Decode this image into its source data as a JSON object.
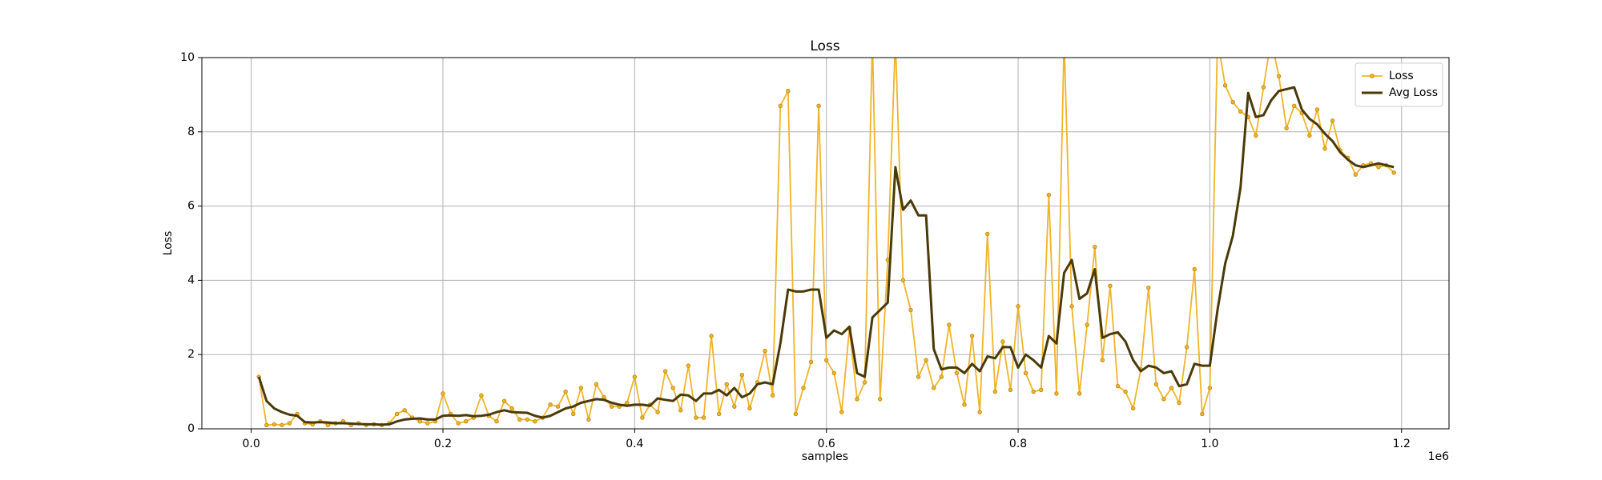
{
  "chart_data": {
    "type": "line",
    "title": "Loss",
    "x_label": "samples",
    "y_label": "Loss",
    "x_offset_label": "1e6",
    "x": [
      8000,
      16000,
      24000,
      32000,
      40000,
      48000,
      56000,
      64000,
      72000,
      80000,
      88000,
      96000,
      104000,
      112000,
      120000,
      128000,
      136000,
      144000,
      152000,
      160000,
      168000,
      176000,
      184000,
      192000,
      200000,
      208000,
      216000,
      224000,
      232000,
      240000,
      248000,
      256000,
      264000,
      272000,
      280000,
      288000,
      296000,
      304000,
      312000,
      320000,
      328000,
      336000,
      344000,
      352000,
      360000,
      368000,
      376000,
      384000,
      392000,
      400000,
      408000,
      416000,
      424000,
      432000,
      440000,
      448000,
      456000,
      464000,
      472000,
      480000,
      488000,
      496000,
      504000,
      512000,
      520000,
      528000,
      536000,
      544000,
      552000,
      560000,
      568000,
      576000,
      584000,
      592000,
      600000,
      608000,
      616000,
      624000,
      632000,
      640000,
      648000,
      656000,
      664000,
      672000,
      680000,
      688000,
      696000,
      704000,
      712000,
      720000,
      728000,
      736000,
      744000,
      752000,
      760000,
      768000,
      776000,
      784000,
      792000,
      800000,
      808000,
      816000,
      824000,
      832000,
      840000,
      848000,
      856000,
      864000,
      872000,
      880000,
      888000,
      896000,
      904000,
      912000,
      920000,
      928000,
      936000,
      944000,
      952000,
      960000,
      968000,
      976000,
      984000,
      992000,
      1000000,
      1008000,
      1016000,
      1024000,
      1032000,
      1040000,
      1048000,
      1056000,
      1064000,
      1072000,
      1080000,
      1088000,
      1096000,
      1104000,
      1112000,
      1120000,
      1128000,
      1136000,
      1144000,
      1152000,
      1160000,
      1168000,
      1176000,
      1184000,
      1192000
    ],
    "series": [
      {
        "name": "Loss",
        "color": "#f0b429",
        "marker": true,
        "values": [
          1.4,
          0.1,
          0.12,
          0.1,
          0.15,
          0.4,
          0.15,
          0.12,
          0.2,
          0.1,
          0.15,
          0.2,
          0.1,
          0.15,
          0.1,
          0.12,
          0.1,
          0.15,
          0.4,
          0.5,
          0.3,
          0.2,
          0.15,
          0.2,
          0.95,
          0.4,
          0.15,
          0.2,
          0.3,
          0.9,
          0.35,
          0.2,
          0.75,
          0.55,
          0.25,
          0.25,
          0.2,
          0.3,
          0.65,
          0.6,
          1.0,
          0.4,
          1.1,
          0.25,
          1.2,
          0.85,
          0.6,
          0.6,
          0.7,
          1.4,
          0.3,
          0.65,
          0.45,
          1.55,
          1.1,
          0.5,
          1.7,
          0.3,
          0.3,
          2.5,
          0.4,
          1.2,
          0.6,
          1.45,
          0.55,
          1.25,
          2.1,
          0.9,
          8.7,
          9.1,
          0.4,
          1.1,
          1.8,
          8.7,
          1.85,
          1.5,
          0.45,
          2.7,
          0.8,
          1.25,
          10.5,
          0.8,
          4.55,
          10.5,
          4.0,
          3.2,
          1.4,
          1.85,
          1.1,
          1.4,
          2.8,
          1.5,
          0.65,
          2.5,
          0.45,
          5.25,
          1.0,
          2.35,
          1.05,
          3.3,
          1.5,
          1.0,
          1.05,
          6.3,
          0.95,
          10.5,
          3.3,
          0.95,
          2.8,
          4.9,
          1.85,
          3.85,
          1.15,
          1.0,
          0.55,
          1.6,
          3.8,
          1.2,
          0.8,
          1.1,
          0.7,
          2.2,
          4.3,
          0.4,
          1.1,
          10.5,
          9.25,
          8.8,
          8.55,
          8.4,
          7.9,
          9.2,
          10.5,
          9.5,
          8.1,
          8.7,
          8.5,
          7.9,
          8.6,
          7.55,
          8.3,
          7.5,
          7.3,
          6.85,
          7.1,
          7.15,
          7.05,
          7.1,
          6.9
        ]
      },
      {
        "name": "Avg Loss",
        "color": "#4a3a08",
        "marker": false,
        "values": [
          1.4,
          0.75,
          0.55,
          0.45,
          0.38,
          0.35,
          0.18,
          0.17,
          0.18,
          0.17,
          0.15,
          0.15,
          0.14,
          0.13,
          0.12,
          0.12,
          0.11,
          0.12,
          0.2,
          0.25,
          0.27,
          0.28,
          0.25,
          0.25,
          0.35,
          0.36,
          0.35,
          0.37,
          0.34,
          0.35,
          0.38,
          0.45,
          0.5,
          0.45,
          0.44,
          0.43,
          0.35,
          0.3,
          0.35,
          0.45,
          0.55,
          0.6,
          0.7,
          0.75,
          0.8,
          0.78,
          0.7,
          0.65,
          0.62,
          0.65,
          0.65,
          0.62,
          0.82,
          0.78,
          0.75,
          0.92,
          0.9,
          0.75,
          0.95,
          0.95,
          1.05,
          0.9,
          1.1,
          0.85,
          0.95,
          1.2,
          1.25,
          1.2,
          2.3,
          3.75,
          3.7,
          3.7,
          3.75,
          3.75,
          2.45,
          2.65,
          2.55,
          2.75,
          1.5,
          1.4,
          3.0,
          3.2,
          3.4,
          7.05,
          5.9,
          6.15,
          5.75,
          5.75,
          2.15,
          1.6,
          1.65,
          1.65,
          1.5,
          1.75,
          1.55,
          1.95,
          1.9,
          2.2,
          2.2,
          1.65,
          2.0,
          1.85,
          1.65,
          2.5,
          2.3,
          4.2,
          4.55,
          3.5,
          3.65,
          4.3,
          2.45,
          2.55,
          2.6,
          2.35,
          1.85,
          1.55,
          1.7,
          1.65,
          1.5,
          1.55,
          1.15,
          1.2,
          1.75,
          1.7,
          1.7,
          3.2,
          4.45,
          5.2,
          6.5,
          9.05,
          8.4,
          8.45,
          8.85,
          9.1,
          9.15,
          9.2,
          8.6,
          8.35,
          8.2,
          7.95,
          7.75,
          7.45,
          7.25,
          7.1,
          7.05,
          7.1,
          7.15,
          7.1,
          7.05
        ]
      }
    ],
    "xlim": [
      -51500,
      1249500
    ],
    "xticks": [
      {
        "value": 0,
        "label": "0.0"
      },
      {
        "value": 200000,
        "label": "0.2"
      },
      {
        "value": 400000,
        "label": "0.4"
      },
      {
        "value": 600000,
        "label": "0.6"
      },
      {
        "value": 800000,
        "label": "0.8"
      },
      {
        "value": 1000000,
        "label": "1.0"
      },
      {
        "value": 1200000,
        "label": "1.2"
      }
    ],
    "ylim": [
      0,
      10
    ],
    "yticks": [
      0,
      2,
      4,
      6,
      8,
      10
    ],
    "grid": true,
    "legend": "upper right"
  }
}
